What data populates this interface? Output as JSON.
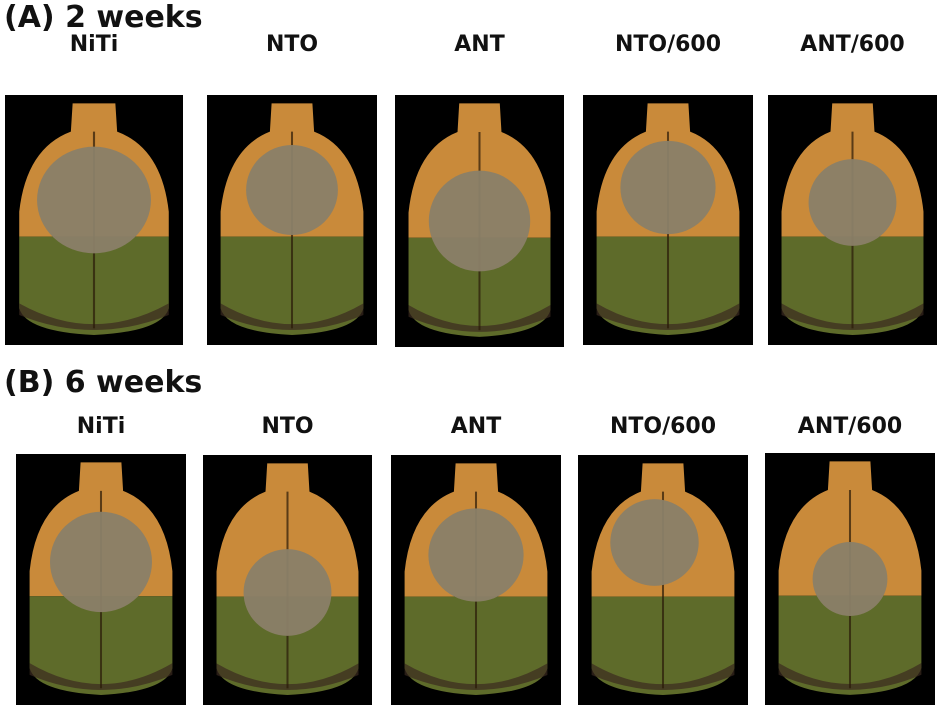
{
  "sections": [
    {
      "title": "(A) 2 weeks",
      "samples": [
        "NiTi",
        "NTO",
        "ANT",
        "NTO/600",
        "ANT/600"
      ]
    },
    {
      "title": "(B) 6 weeks",
      "samples": [
        "NiTi",
        "NTO",
        "ANT",
        "NTO/600",
        "ANT/600"
      ]
    }
  ],
  "colors": {
    "bone_upper": "#c98a3a",
    "bone_lower": "#5e6b2a",
    "defect": "#8a8068",
    "background": "#000000"
  }
}
